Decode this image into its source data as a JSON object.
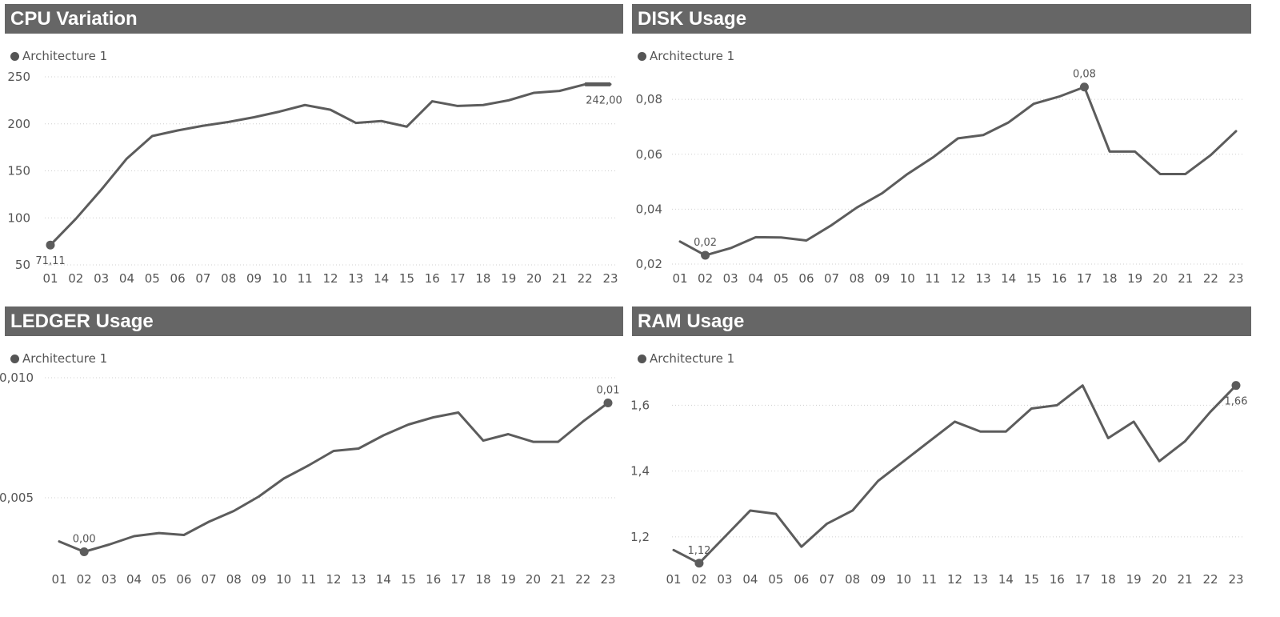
{
  "panels": [
    {
      "title": "CPU Variation",
      "legend": "Architecture 1",
      "color": "#5c5c5c",
      "chart_data": {
        "type": "line",
        "categories": [
          "01",
          "02",
          "03",
          "04",
          "05",
          "06",
          "07",
          "08",
          "09",
          "10",
          "11",
          "12",
          "13",
          "14",
          "15",
          "16",
          "17",
          "18",
          "19",
          "20",
          "21",
          "22",
          "23"
        ],
        "series": [
          {
            "name": "Architecture 1",
            "values": [
              71.11,
              99,
              130,
              163,
              187,
              193,
              198,
              202,
              207,
              213,
              220,
              215,
              201,
              203,
              197,
              224,
              219,
              220,
              225,
              233,
              235,
              242,
              242
            ]
          }
        ],
        "yticks": [
          50,
          100,
          150,
          200,
          250
        ],
        "ytick_labels": [
          "50",
          "100",
          "150",
          "200",
          "250"
        ],
        "ylim": [
          50,
          250
        ],
        "grid": true,
        "legend_position": "top-left",
        "annotations": [
          {
            "index": 0,
            "label": "71,11",
            "marker": true,
            "position": "below"
          },
          {
            "index": 22,
            "label": "242,00",
            "marker": false,
            "position": "below-left"
          }
        ]
      }
    },
    {
      "title": "DISK Usage",
      "legend": "Architecture 1",
      "color": "#5c5c5c",
      "chart_data": {
        "type": "line",
        "categories": [
          "01",
          "02",
          "03",
          "04",
          "05",
          "06",
          "07",
          "08",
          "09",
          "10",
          "11",
          "12",
          "13",
          "14",
          "15",
          "16",
          "17",
          "18",
          "19",
          "20",
          "21",
          "22",
          "23"
        ],
        "series": [
          {
            "name": "Architecture 1",
            "values": [
              0.0282,
              0.0232,
              0.0258,
              0.0298,
              0.0297,
              0.0286,
              0.0342,
              0.0406,
              0.0458,
              0.0528,
              0.0588,
              0.0658,
              0.067,
              0.0716,
              0.0784,
              0.081,
              0.0845,
              0.061,
              0.061,
              0.0528,
              0.0528,
              0.0597,
              0.0684
            ]
          }
        ],
        "yticks": [
          0.02,
          0.04,
          0.06,
          0.08
        ],
        "ytick_labels": [
          "0,02",
          "0,04",
          "0,06",
          "0,08"
        ],
        "ylim": [
          0.02,
          0.085
        ],
        "grid": true,
        "legend_position": "top-left",
        "annotations": [
          {
            "index": 1,
            "label": "0,02",
            "marker": true,
            "position": "above"
          },
          {
            "index": 16,
            "label": "0,08",
            "marker": true,
            "position": "above"
          }
        ]
      }
    },
    {
      "title": "LEDGER Usage",
      "legend": "Architecture 1",
      "color": "#5c5c5c",
      "chart_data": {
        "type": "line",
        "categories": [
          "01",
          "02",
          "03",
          "04",
          "05",
          "06",
          "07",
          "08",
          "09",
          "10",
          "11",
          "12",
          "13",
          "14",
          "15",
          "16",
          "17",
          "18",
          "19",
          "20",
          "21",
          "22",
          "23"
        ],
        "series": [
          {
            "name": "Architecture 1",
            "values": [
              0.00318,
              0.00275,
              0.00305,
              0.0034,
              0.00353,
              0.00345,
              0.004,
              0.00445,
              0.00505,
              0.0058,
              0.00635,
              0.00695,
              0.00705,
              0.0076,
              0.00805,
              0.00835,
              0.00855,
              0.00738,
              0.00765,
              0.00733,
              0.00733,
              0.00818,
              0.00895
            ]
          }
        ],
        "yticks": [
          0.005,
          0.01
        ],
        "ytick_labels": [
          "0,005",
          "0,010"
        ],
        "ylim": [
          0.0024,
          0.01
        ],
        "grid": true,
        "legend_position": "top-left",
        "annotations": [
          {
            "index": 1,
            "label": "0,00",
            "marker": true,
            "position": "above"
          },
          {
            "index": 22,
            "label": "0,01",
            "marker": true,
            "position": "above"
          }
        ]
      }
    },
    {
      "title": "RAM Usage",
      "legend": "Architecture 1",
      "color": "#5c5c5c",
      "chart_data": {
        "type": "line",
        "categories": [
          "01",
          "02",
          "03",
          "04",
          "05",
          "06",
          "07",
          "08",
          "09",
          "10",
          "11",
          "12",
          "13",
          "14",
          "15",
          "16",
          "17",
          "18",
          "19",
          "20",
          "21",
          "22",
          "23"
        ],
        "series": [
          {
            "name": "Architecture 1",
            "values": [
              1.16,
              1.12,
              1.2,
              1.28,
              1.27,
              1.17,
              1.24,
              1.28,
              1.37,
              1.43,
              1.49,
              1.55,
              1.52,
              1.52,
              1.59,
              1.6,
              1.66,
              1.5,
              1.55,
              1.43,
              1.49,
              1.58,
              1.66
            ]
          }
        ],
        "yticks": [
          1.2,
          1.4,
          1.6
        ],
        "ytick_labels": [
          "1,2",
          "1,4",
          "1,6"
        ],
        "ylim": [
          1.1,
          1.72
        ],
        "grid": true,
        "legend_position": "top-left",
        "annotations": [
          {
            "index": 1,
            "label": "1,12",
            "marker": true,
            "position": "above"
          },
          {
            "index": 22,
            "label": "1,66",
            "marker": true,
            "position": "below"
          }
        ]
      }
    }
  ]
}
